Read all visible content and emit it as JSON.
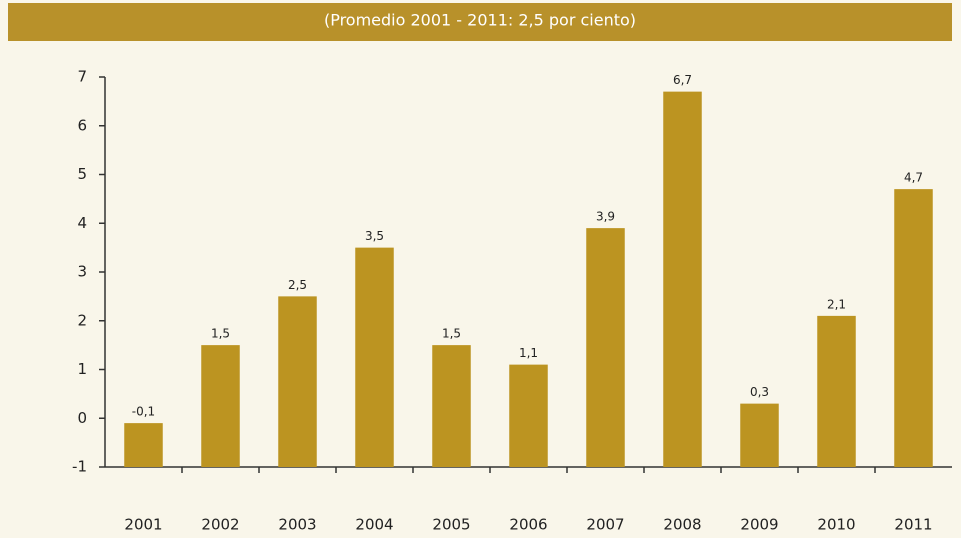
{
  "chart_data": {
    "type": "bar",
    "title": "(Promedio 2001 - 2011: 2,5 por ciento)",
    "categories": [
      "2001",
      "2002",
      "2003",
      "2004",
      "2005",
      "2006",
      "2007",
      "2008",
      "2009",
      "2010",
      "2011"
    ],
    "values": [
      -0.1,
      1.5,
      2.5,
      3.5,
      1.5,
      1.1,
      3.9,
      6.7,
      0.3,
      2.1,
      4.7
    ],
    "value_labels": [
      "-0,1",
      "1,5",
      "2,5",
      "3,5",
      "1,5",
      "1,1",
      "3,9",
      "6,7",
      "0,3",
      "2,1",
      "4,7"
    ],
    "color": "#bc9421",
    "ylim": [
      -1,
      7
    ],
    "yticks": [
      -1,
      0,
      1,
      2,
      3,
      4,
      5,
      6,
      7
    ],
    "grid": false
  }
}
